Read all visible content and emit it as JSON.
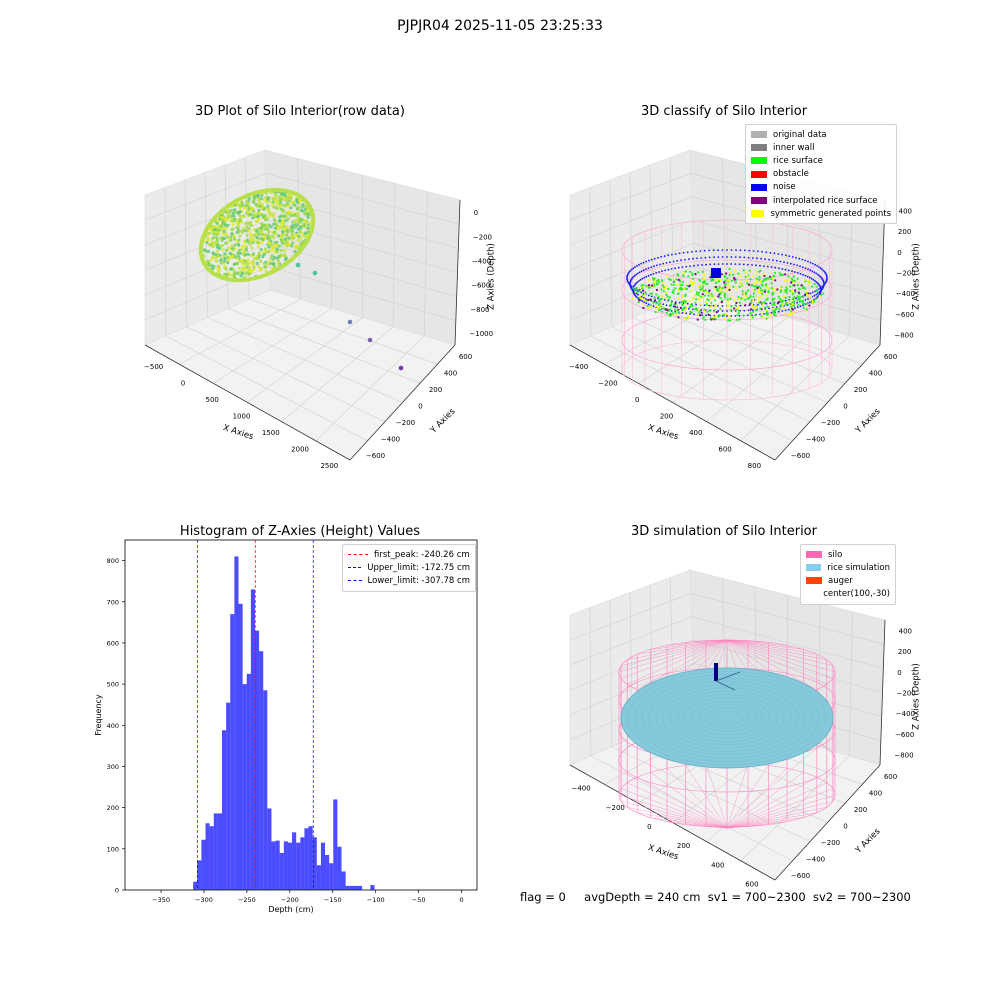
{
  "suptitle": "PJPJR04 2025-11-05 23:25:33",
  "panels": {
    "p1": {
      "title": "3D Plot of Silo Interior(row data)",
      "xlabel": "X Axies",
      "ylabel": "Y Axies",
      "zlabel": "Z Axies (Depth)",
      "xticks": [
        "−500",
        "0",
        "500",
        "1000",
        "1500",
        "2000",
        "2500"
      ],
      "yticks": [
        "−600",
        "−400",
        "−200",
        "0",
        "200",
        "400",
        "600"
      ],
      "zticks": [
        "0",
        "−200",
        "−400",
        "−600",
        "−800",
        "−1000"
      ]
    },
    "p2": {
      "title": "3D classify of Silo Interior",
      "xlabel": "X Axies",
      "ylabel": "Y Axies",
      "zlabel": "Z Axies (Depth)",
      "xticks": [
        "−400",
        "−200",
        "0",
        "200",
        "400",
        "600",
        "800"
      ],
      "yticks": [
        "−600",
        "−400",
        "−200",
        "0",
        "200",
        "400",
        "600"
      ],
      "zticks": [
        "400",
        "200",
        "0",
        "−200",
        "−400",
        "−600",
        "−800"
      ],
      "legend": [
        {
          "label": "original data",
          "color": "#b0b0b0"
        },
        {
          "label": "inner wall",
          "color": "#808080"
        },
        {
          "label": "rice surface",
          "color": "#00ff00"
        },
        {
          "label": "obstacle",
          "color": "#ff0000"
        },
        {
          "label": "noise",
          "color": "#0000ff"
        },
        {
          "label": "interpolated rice surface",
          "color": "#800080"
        },
        {
          "label": "symmetric generated points",
          "color": "#ffff00"
        }
      ]
    },
    "p4": {
      "title": "3D simulation of Silo Interior",
      "xlabel": "X Axies",
      "ylabel": "Y Axies",
      "zlabel": "Z Axies (Depth)",
      "xticks": [
        "−400",
        "−200",
        "0",
        "200",
        "400",
        "600"
      ],
      "yticks": [
        "−600",
        "−400",
        "−200",
        "0",
        "200",
        "400",
        "600"
      ],
      "zticks": [
        "400",
        "200",
        "0",
        "−200",
        "−400",
        "−600",
        "−800"
      ],
      "legend": [
        {
          "label": "silo",
          "color": "#ff69b4"
        },
        {
          "label": "rice simulation",
          "color": "#87ceeb"
        },
        {
          "label": "auger",
          "color": "#ff4500"
        },
        {
          "label": "center(100,-30)",
          "color": ""
        }
      ]
    }
  },
  "chart_data": {
    "type": "bar",
    "title": "Histogram of Z-Axies (Height) Values",
    "xlabel": "Depth (cm)",
    "ylabel": "Frequency",
    "xlim": [
      -392,
      18
    ],
    "ylim": [
      0,
      850
    ],
    "xticks": [
      -350,
      -300,
      -250,
      -200,
      -150,
      -100,
      -50,
      0
    ],
    "xtick_labels": [
      "−350",
      "−300",
      "−250",
      "−200",
      "−150",
      "−100",
      "−50",
      "0"
    ],
    "yticks": [
      0,
      100,
      200,
      300,
      400,
      500,
      600,
      700,
      800
    ],
    "bar_color": "#0000ff",
    "bar_alpha": 0.7,
    "bins": [
      {
        "x0": -312.6,
        "x1": -307.8,
        "v": 20
      },
      {
        "x0": -307.8,
        "x1": -303.0,
        "v": 72
      },
      {
        "x0": -303.0,
        "x1": -298.2,
        "v": 122
      },
      {
        "x0": -298.2,
        "x1": -293.4,
        "v": 162
      },
      {
        "x0": -293.4,
        "x1": -288.6,
        "v": 155
      },
      {
        "x0": -288.6,
        "x1": -283.8,
        "v": 186
      },
      {
        "x0": -283.8,
        "x1": -279.0,
        "v": 186
      },
      {
        "x0": -279.0,
        "x1": -274.2,
        "v": 388
      },
      {
        "x0": -274.2,
        "x1": -269.4,
        "v": 455
      },
      {
        "x0": -269.4,
        "x1": -264.6,
        "v": 670
      },
      {
        "x0": -264.6,
        "x1": -259.8,
        "v": 810
      },
      {
        "x0": -259.8,
        "x1": -255.0,
        "v": 695
      },
      {
        "x0": -255.0,
        "x1": -250.2,
        "v": 500
      },
      {
        "x0": -250.2,
        "x1": -245.4,
        "v": 525
      },
      {
        "x0": -245.4,
        "x1": -240.6,
        "v": 730
      },
      {
        "x0": -240.6,
        "x1": -235.8,
        "v": 630
      },
      {
        "x0": -235.8,
        "x1": -231.0,
        "v": 580
      },
      {
        "x0": -231.0,
        "x1": -226.2,
        "v": 485
      },
      {
        "x0": -226.2,
        "x1": -221.4,
        "v": 198
      },
      {
        "x0": -221.4,
        "x1": -216.6,
        "v": 118
      },
      {
        "x0": -216.6,
        "x1": -211.8,
        "v": 120
      },
      {
        "x0": -211.8,
        "x1": -207.0,
        "v": 90
      },
      {
        "x0": -207.0,
        "x1": -202.2,
        "v": 118
      },
      {
        "x0": -202.2,
        "x1": -197.4,
        "v": 115
      },
      {
        "x0": -197.4,
        "x1": -192.6,
        "v": 140
      },
      {
        "x0": -192.6,
        "x1": -187.8,
        "v": 115
      },
      {
        "x0": -187.8,
        "x1": -183.0,
        "v": 128
      },
      {
        "x0": -183.0,
        "x1": -178.2,
        "v": 150
      },
      {
        "x0": -178.2,
        "x1": -173.4,
        "v": 155
      },
      {
        "x0": -173.4,
        "x1": -168.6,
        "v": 128
      },
      {
        "x0": -168.6,
        "x1": -163.8,
        "v": 60
      },
      {
        "x0": -163.8,
        "x1": -159.0,
        "v": 115
      },
      {
        "x0": -159.0,
        "x1": -154.2,
        "v": 85
      },
      {
        "x0": -154.2,
        "x1": -149.4,
        "v": 65
      },
      {
        "x0": -149.4,
        "x1": -144.6,
        "v": 220
      },
      {
        "x0": -144.6,
        "x1": -139.8,
        "v": 105
      },
      {
        "x0": -139.8,
        "x1": -135.0,
        "v": 45
      },
      {
        "x0": -135.0,
        "x1": -130.2,
        "v": 10
      },
      {
        "x0": -130.2,
        "x1": -125.4,
        "v": 10
      },
      {
        "x0": -125.4,
        "x1": -120.6,
        "v": 10
      },
      {
        "x0": -120.6,
        "x1": -115.8,
        "v": 10
      },
      {
        "x0": -115.8,
        "x1": -111.0,
        "v": 0
      },
      {
        "x0": -111.0,
        "x1": -106.2,
        "v": 0
      },
      {
        "x0": -106.2,
        "x1": -101.4,
        "v": 12
      }
    ],
    "vlines": [
      {
        "x": -240.26,
        "color": "#ff0000",
        "label": "first_peak: -240.26 cm"
      },
      {
        "x": -172.75,
        "color": "#0000ff",
        "label": "Upper_limit: -172.75 cm"
      },
      {
        "x": -307.78,
        "color": "#0000ff",
        "label": "Lower_limit: -307.78 cm"
      }
    ]
  },
  "status": {
    "flag": "flag = 0",
    "avg": "avgDepth = 240 cm",
    "sv1": "sv1 = 700~2300",
    "sv2": "sv2 = 700~2300"
  }
}
